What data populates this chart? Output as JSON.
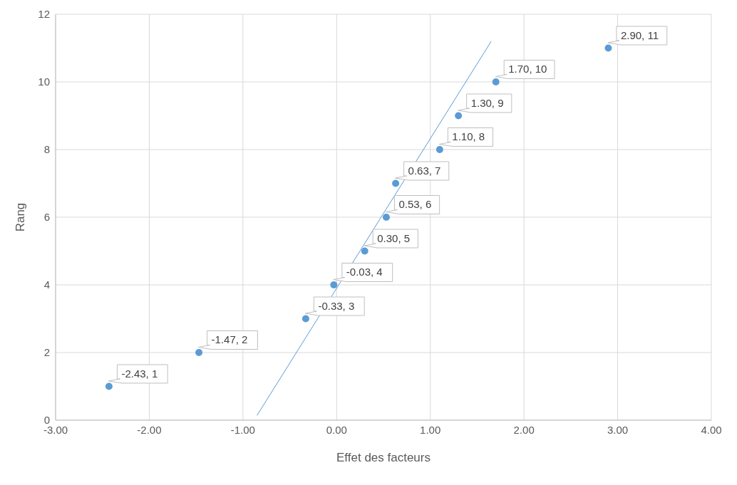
{
  "chart_data": {
    "type": "scatter",
    "xlabel": "Effet des facteurs",
    "ylabel": "Rang",
    "xlim": [
      -3,
      4
    ],
    "xticks": [
      {
        "value": -3,
        "label": "-3.00"
      },
      {
        "value": -2,
        "label": "-2.00"
      },
      {
        "value": -1,
        "label": "-1.00"
      },
      {
        "value": 0,
        "label": "0.00"
      },
      {
        "value": 1,
        "label": "1.00"
      },
      {
        "value": 2,
        "label": "2.00"
      },
      {
        "value": 3,
        "label": "3.00"
      },
      {
        "value": 4,
        "label": "4.00"
      }
    ],
    "ylim": [
      0,
      12
    ],
    "yticks": [
      0,
      2,
      4,
      6,
      8,
      10,
      12
    ],
    "grid": true,
    "marker": "circle",
    "series": [
      {
        "color": "#5b9bd5",
        "x": [
          -2.43,
          -1.47,
          -0.33,
          -0.03,
          0.3,
          0.53,
          0.63,
          1.1,
          1.3,
          1.7,
          2.9
        ],
        "values": [
          1,
          2,
          3,
          4,
          5,
          6,
          7,
          8,
          9,
          10,
          11
        ],
        "value_labels": [
          "-2.43, 1",
          "-1.47, 2",
          "-0.33, 3",
          "-0.03, 4",
          "0.30, 5",
          "0.53, 6",
          "0.63, 7",
          "1.10, 8",
          "1.30, 9",
          "1.70, 10",
          "2.90, 11"
        ]
      },
      {
        "type": "line",
        "color": "#5b9bd5",
        "marker": "none",
        "x": [
          -0.85,
          1.65
        ],
        "values": [
          0.14,
          11.2
        ]
      }
    ]
  }
}
